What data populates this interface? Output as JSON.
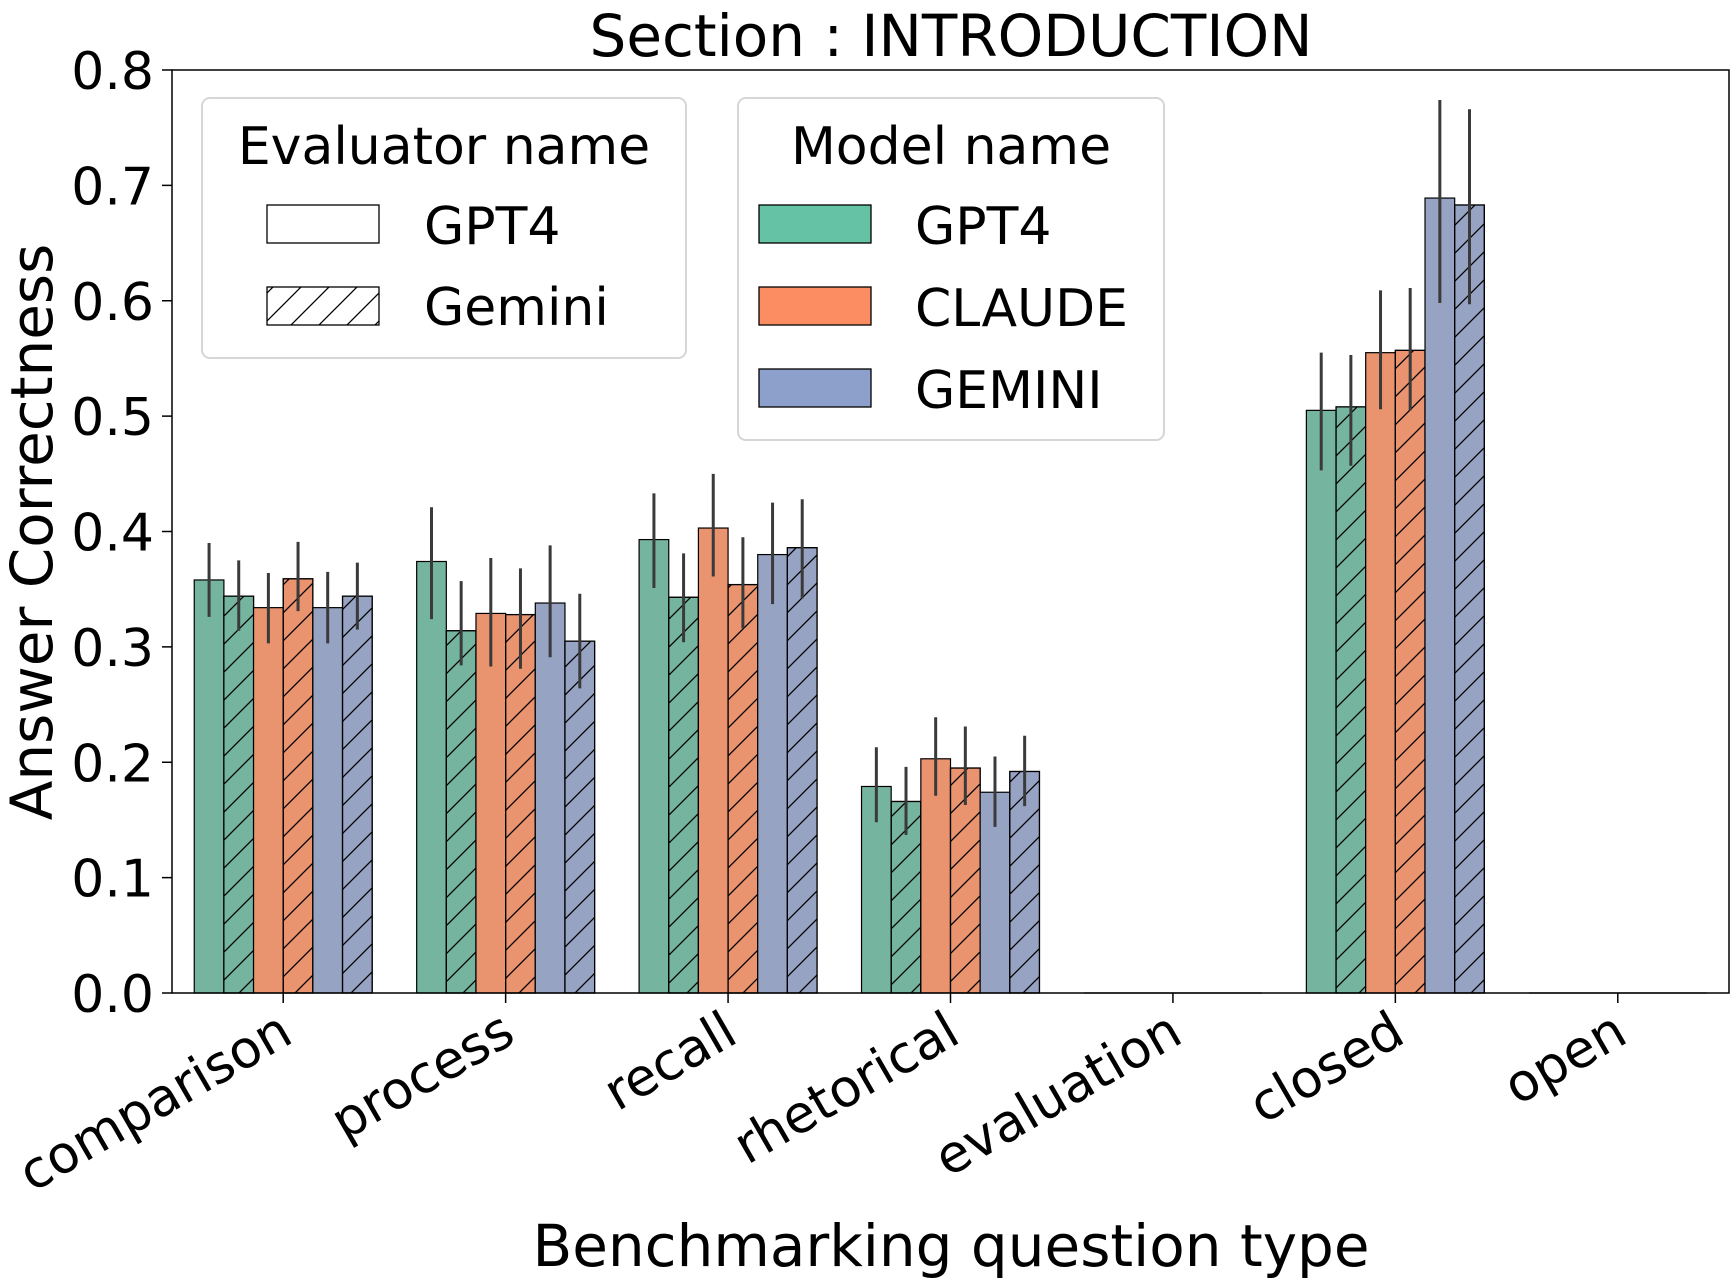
{
  "chart_data": {
    "type": "bar",
    "title": "Section : INTRODUCTION",
    "xlabel": "Benchmarking question type",
    "ylabel": "Answer Correctness",
    "ylim": [
      0,
      0.8
    ],
    "yticks": [
      "0.0",
      "0.1",
      "0.2",
      "0.3",
      "0.4",
      "0.5",
      "0.6",
      "0.7",
      "0.8"
    ],
    "grid": false,
    "categories": [
      "comparison",
      "process",
      "recall",
      "rhetorical",
      "evaluation",
      "closed",
      "open"
    ],
    "legend_evaluator": {
      "title": "Evaluator name",
      "placement": "top-left",
      "entries": [
        {
          "name": "GPT4",
          "pattern": "solid"
        },
        {
          "name": "Gemini",
          "pattern": "hatched"
        }
      ]
    },
    "legend_model": {
      "title": "Model name",
      "placement": "top-center",
      "entries": [
        {
          "name": "GPT4",
          "color": "#66c2a5"
        },
        {
          "name": "CLAUDE",
          "color": "#fc8d62"
        },
        {
          "name": "GEMINI",
          "color": "#8da0cb"
        }
      ]
    },
    "bar_colors": {
      "GPT4": "#75b5a0",
      "CLAUDE": "#e9936f",
      "GEMINI": "#97a3c3"
    },
    "series": [
      {
        "name": "GPT4 / GPT4 evaluator",
        "model": "GPT4",
        "evaluator": "GPT4",
        "values": [
          0.358,
          0.374,
          0.393,
          0.179,
          0,
          0.505,
          0
        ],
        "err_low": [
          0.326,
          0.324,
          0.351,
          0.148,
          null,
          0.453,
          null
        ],
        "err_high": [
          0.39,
          0.421,
          0.433,
          0.213,
          null,
          0.555,
          null
        ]
      },
      {
        "name": "GPT4 / Gemini evaluator",
        "model": "GPT4",
        "evaluator": "Gemini",
        "values": [
          0.344,
          0.314,
          0.343,
          0.166,
          0,
          0.508,
          0
        ],
        "err_low": [
          0.314,
          0.284,
          0.304,
          0.137,
          null,
          0.457,
          null
        ],
        "err_high": [
          0.375,
          0.357,
          0.381,
          0.196,
          null,
          0.553,
          null
        ]
      },
      {
        "name": "CLAUDE / GPT4 evaluator",
        "model": "CLAUDE",
        "evaluator": "GPT4",
        "values": [
          0.334,
          0.329,
          0.403,
          0.203,
          0,
          0.555,
          0
        ],
        "err_low": [
          0.303,
          0.283,
          0.361,
          0.171,
          null,
          0.506,
          null
        ],
        "err_high": [
          0.364,
          0.377,
          0.45,
          0.239,
          null,
          0.609,
          null
        ]
      },
      {
        "name": "CLAUDE / Gemini evaluator",
        "model": "CLAUDE",
        "evaluator": "Gemini",
        "values": [
          0.359,
          0.328,
          0.354,
          0.195,
          0,
          0.557,
          0
        ],
        "err_low": [
          0.331,
          0.281,
          0.316,
          0.163,
          null,
          0.505,
          null
        ],
        "err_high": [
          0.391,
          0.368,
          0.395,
          0.231,
          null,
          0.611,
          null
        ]
      },
      {
        "name": "GEMINI / GPT4 evaluator",
        "model": "GEMINI",
        "evaluator": "GPT4",
        "values": [
          0.334,
          0.338,
          0.38,
          0.174,
          0,
          0.689,
          0
        ],
        "err_low": [
          0.303,
          0.291,
          0.337,
          0.144,
          null,
          0.598,
          null
        ],
        "err_high": [
          0.365,
          0.388,
          0.425,
          0.205,
          null,
          0.774,
          null
        ]
      },
      {
        "name": "GEMINI / Gemini evaluator",
        "model": "GEMINI",
        "evaluator": "Gemini",
        "values": [
          0.344,
          0.305,
          0.386,
          0.192,
          0,
          0.683,
          0
        ],
        "err_low": [
          0.315,
          0.264,
          0.342,
          0.162,
          null,
          0.597,
          null
        ],
        "err_high": [
          0.373,
          0.346,
          0.428,
          0.223,
          null,
          0.766,
          null
        ]
      }
    ]
  }
}
